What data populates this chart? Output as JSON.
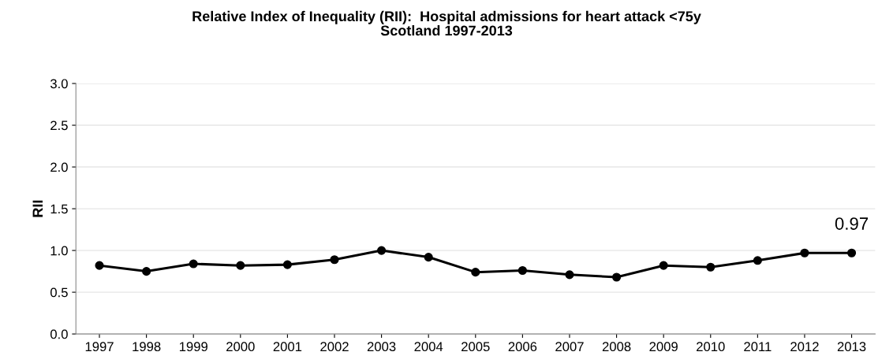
{
  "chart_data": {
    "type": "line",
    "title": "Relative Index of Inequality (RII):  Hospital admissions for heart attack <75y\nScotland 1997-2013",
    "ylabel": "RII",
    "categories": [
      "1997",
      "1998",
      "1999",
      "2000",
      "2001",
      "2002",
      "2003",
      "2004",
      "2005",
      "2006",
      "2007",
      "2008",
      "2009",
      "2010",
      "2011",
      "2012",
      "2013"
    ],
    "series": [
      {
        "color": "#000000",
        "values": [
          0.82,
          0.75,
          0.84,
          0.82,
          0.83,
          0.89,
          1.0,
          0.92,
          0.74,
          0.76,
          0.71,
          0.68,
          0.82,
          0.8,
          0.88,
          0.97,
          0.97
        ]
      }
    ],
    "annotations": [
      {
        "text": "0.97",
        "x": "2013",
        "y": 0.97
      }
    ],
    "ylim": [
      0,
      3
    ],
    "yticks": [
      {
        "value": 0,
        "label": "0.0"
      },
      {
        "value": 0.5,
        "label": "0.5"
      },
      {
        "value": 1,
        "label": "1.0"
      },
      {
        "value": 1.5,
        "label": "1.5"
      },
      {
        "value": 2,
        "label": "2.0"
      },
      {
        "value": 2.5,
        "label": "2.5"
      },
      {
        "value": 3,
        "label": "3.0"
      }
    ],
    "grid": "y",
    "marker": "circle",
    "line_style": "solid"
  }
}
